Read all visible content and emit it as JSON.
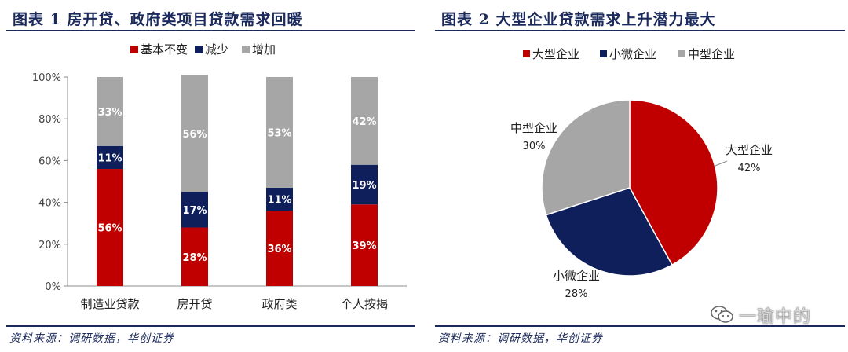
{
  "figures": [
    {
      "title": "图表 1   房开贷、政府类项目贷款需求回暖",
      "source": "资料来源：调研数据，华创证券"
    },
    {
      "title": "图表 2   大型企业贷款需求上升潜力最大",
      "source": "资料来源：调研数据，华创证券"
    }
  ],
  "watermark": {
    "text": "一瑜中的",
    "icon": "wechat-icon"
  },
  "colors": {
    "red": "#c00000",
    "navy": "#0f1f5c",
    "gray": "#a6a6a6",
    "title_blue": "#1b2a5c"
  },
  "chart_data": [
    {
      "type": "bar",
      "stacked": true,
      "percent": true,
      "categories": [
        "制造业贷款",
        "房开贷",
        "政府类",
        "个人按揭"
      ],
      "series": [
        {
          "name": "基本不变",
          "color": "#c00000",
          "values": [
            56,
            28,
            36,
            39
          ],
          "labels": [
            "56%",
            "28%",
            "36%",
            "39%"
          ]
        },
        {
          "name": "减少",
          "color": "#0f1f5c",
          "values": [
            11,
            17,
            11,
            19
          ],
          "labels": [
            "11%",
            "17%",
            "11%",
            "19%"
          ]
        },
        {
          "name": "增加",
          "color": "#a6a6a6",
          "values": [
            33,
            56,
            53,
            42
          ],
          "labels": [
            "33%",
            "56%",
            "53%",
            "42%"
          ]
        }
      ],
      "ylim": [
        0,
        100
      ],
      "yticks": [
        "0%",
        "20%",
        "40%",
        "60%",
        "80%",
        "100%"
      ],
      "legend": "top",
      "grid": false
    },
    {
      "type": "pie",
      "slices": [
        {
          "name": "大型企业",
          "value": 42,
          "label": "42%",
          "color": "#c00000"
        },
        {
          "name": "小微企业",
          "value": 28,
          "label": "28%",
          "color": "#0f1f5c"
        },
        {
          "name": "中型企业",
          "value": 30,
          "label": "30%",
          "color": "#a6a6a6"
        }
      ],
      "legend": "top"
    }
  ]
}
